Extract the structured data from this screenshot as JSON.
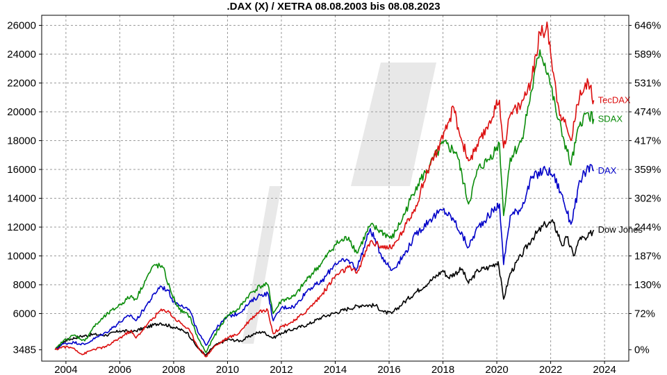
{
  "chart_data": {
    "type": "line",
    "title": ".DAX (X) / XETRA 08.08.2003 bis 08.08.2023",
    "xlabel": "",
    "ylabel": "",
    "xlim": [
      2003.1,
      2024.9
    ],
    "ylim": [
      2700,
      26700
    ],
    "grid": true,
    "x_ticks": [
      "2004",
      "2006",
      "2008",
      "2010",
      "2012",
      "2014",
      "2016",
      "2018",
      "2020",
      "2022",
      "2024"
    ],
    "y_ticks_left": [
      "3485",
      "6000",
      "8000",
      "10000",
      "12000",
      "14000",
      "16000",
      "18000",
      "20000",
      "22000",
      "24000",
      "26000"
    ],
    "y_ticks_right": [
      "0%",
      "72%",
      "130%",
      "187%",
      "244%",
      "302%",
      "359%",
      "417%",
      "474%",
      "531%",
      "589%",
      "646%"
    ],
    "series": [
      {
        "name": "Dow Jones",
        "color": "#000000",
        "points": [
          [
            2003.6,
            3485
          ],
          [
            2004.0,
            4150
          ],
          [
            2004.5,
            4400
          ],
          [
            2005.0,
            4550
          ],
          [
            2005.5,
            4500
          ],
          [
            2006.0,
            4800
          ],
          [
            2006.5,
            4750
          ],
          [
            2007.0,
            5050
          ],
          [
            2007.5,
            5350
          ],
          [
            2008.0,
            5050
          ],
          [
            2008.5,
            4700
          ],
          [
            2008.9,
            3600
          ],
          [
            2009.2,
            3100
          ],
          [
            2009.5,
            3750
          ],
          [
            2010.0,
            4200
          ],
          [
            2010.5,
            4100
          ],
          [
            2011.0,
            4600
          ],
          [
            2011.3,
            4750
          ],
          [
            2011.7,
            4300
          ],
          [
            2012.0,
            4650
          ],
          [
            2012.5,
            4950
          ],
          [
            2013.0,
            5250
          ],
          [
            2013.5,
            5750
          ],
          [
            2014.0,
            6050
          ],
          [
            2014.5,
            6350
          ],
          [
            2015.0,
            6600
          ],
          [
            2015.5,
            6550
          ],
          [
            2015.8,
            6100
          ],
          [
            2016.1,
            6000
          ],
          [
            2016.5,
            6700
          ],
          [
            2017.0,
            7500
          ],
          [
            2017.5,
            8200
          ],
          [
            2018.0,
            9000
          ],
          [
            2018.2,
            8500
          ],
          [
            2018.7,
            9100
          ],
          [
            2018.95,
            8100
          ],
          [
            2019.3,
            9000
          ],
          [
            2019.7,
            9200
          ],
          [
            2020.05,
            9600
          ],
          [
            2020.25,
            7000
          ],
          [
            2020.5,
            8800
          ],
          [
            2020.9,
            10000
          ],
          [
            2021.3,
            11200
          ],
          [
            2021.8,
            12200
          ],
          [
            2022.1,
            12300
          ],
          [
            2022.45,
            10700
          ],
          [
            2022.6,
            11300
          ],
          [
            2022.85,
            10000
          ],
          [
            2023.1,
            11300
          ],
          [
            2023.3,
            11100
          ],
          [
            2023.6,
            11800
          ]
        ]
      },
      {
        "name": "DAX",
        "color": "#0000c8",
        "points": [
          [
            2003.6,
            3485
          ],
          [
            2003.9,
            3900
          ],
          [
            2004.3,
            4000
          ],
          [
            2004.7,
            3850
          ],
          [
            2005.0,
            4200
          ],
          [
            2005.5,
            4700
          ],
          [
            2006.0,
            5400
          ],
          [
            2006.4,
            5900
          ],
          [
            2006.6,
            5500
          ],
          [
            2007.0,
            6600
          ],
          [
            2007.5,
            7900
          ],
          [
            2007.8,
            7600
          ],
          [
            2008.0,
            6800
          ],
          [
            2008.3,
            6600
          ],
          [
            2008.6,
            6200
          ],
          [
            2008.9,
            4700
          ],
          [
            2009.2,
            3800
          ],
          [
            2009.5,
            4800
          ],
          [
            2010.0,
            5800
          ],
          [
            2010.4,
            6000
          ],
          [
            2010.8,
            6700
          ],
          [
            2011.2,
            7300
          ],
          [
            2011.5,
            7400
          ],
          [
            2011.7,
            5500
          ],
          [
            2012.0,
            6400
          ],
          [
            2012.5,
            6500
          ],
          [
            2013.0,
            7700
          ],
          [
            2013.5,
            8200
          ],
          [
            2014.0,
            9500
          ],
          [
            2014.5,
            9700
          ],
          [
            2014.8,
            9100
          ],
          [
            2015.3,
            11900
          ],
          [
            2015.7,
            10100
          ],
          [
            2016.1,
            9000
          ],
          [
            2016.5,
            9900
          ],
          [
            2017.0,
            11500
          ],
          [
            2017.5,
            12500
          ],
          [
            2018.0,
            13200
          ],
          [
            2018.4,
            12500
          ],
          [
            2018.95,
            10600
          ],
          [
            2019.3,
            12000
          ],
          [
            2019.7,
            12800
          ],
          [
            2020.1,
            13600
          ],
          [
            2020.25,
            9400
          ],
          [
            2020.5,
            12800
          ],
          [
            2020.9,
            13300
          ],
          [
            2021.3,
            15400
          ],
          [
            2021.8,
            16000
          ],
          [
            2022.1,
            15600
          ],
          [
            2022.4,
            14300
          ],
          [
            2022.75,
            12200
          ],
          [
            2023.1,
            15200
          ],
          [
            2023.4,
            16200
          ],
          [
            2023.6,
            15900
          ]
        ]
      },
      {
        "name": "SDAX",
        "color": "#0a8c0a",
        "points": [
          [
            2003.6,
            3485
          ],
          [
            2003.9,
            4100
          ],
          [
            2004.3,
            4500
          ],
          [
            2004.7,
            4100
          ],
          [
            2005.0,
            5000
          ],
          [
            2005.5,
            5900
          ],
          [
            2006.0,
            6600
          ],
          [
            2006.4,
            7200
          ],
          [
            2006.6,
            7000
          ],
          [
            2007.0,
            8500
          ],
          [
            2007.3,
            9400
          ],
          [
            2007.6,
            9200
          ],
          [
            2007.9,
            7500
          ],
          [
            2008.2,
            6300
          ],
          [
            2008.6,
            5800
          ],
          [
            2008.9,
            4300
          ],
          [
            2009.2,
            3300
          ],
          [
            2009.5,
            4400
          ],
          [
            2010.0,
            5900
          ],
          [
            2010.4,
            6300
          ],
          [
            2010.8,
            7300
          ],
          [
            2011.2,
            7900
          ],
          [
            2011.5,
            8000
          ],
          [
            2011.7,
            6000
          ],
          [
            2012.0,
            6900
          ],
          [
            2012.5,
            7200
          ],
          [
            2013.0,
            8500
          ],
          [
            2013.5,
            9500
          ],
          [
            2014.0,
            10800
          ],
          [
            2014.5,
            11300
          ],
          [
            2014.8,
            10200
          ],
          [
            2015.3,
            12100
          ],
          [
            2015.7,
            11700
          ],
          [
            2016.1,
            11200
          ],
          [
            2016.5,
            12600
          ],
          [
            2017.0,
            14800
          ],
          [
            2017.5,
            16200
          ],
          [
            2018.0,
            17800
          ],
          [
            2018.5,
            17200
          ],
          [
            2018.95,
            13600
          ],
          [
            2019.3,
            16000
          ],
          [
            2019.7,
            16700
          ],
          [
            2020.1,
            17800
          ],
          [
            2020.25,
            12800
          ],
          [
            2020.5,
            16800
          ],
          [
            2020.9,
            17900
          ],
          [
            2021.3,
            21500
          ],
          [
            2021.6,
            24300
          ],
          [
            2021.9,
            22700
          ],
          [
            2022.2,
            20000
          ],
          [
            2022.5,
            18000
          ],
          [
            2022.75,
            16300
          ],
          [
            2023.1,
            19300
          ],
          [
            2023.4,
            19900
          ],
          [
            2023.6,
            19500
          ]
        ]
      },
      {
        "name": "TecDAX",
        "color": "#dc0f0f",
        "points": [
          [
            2003.6,
            3485
          ],
          [
            2003.9,
            3700
          ],
          [
            2004.3,
            3600
          ],
          [
            2004.6,
            3150
          ],
          [
            2005.0,
            3500
          ],
          [
            2005.5,
            3700
          ],
          [
            2006.0,
            4300
          ],
          [
            2006.4,
            4800
          ],
          [
            2006.6,
            4300
          ],
          [
            2007.0,
            5200
          ],
          [
            2007.5,
            6200
          ],
          [
            2007.8,
            6200
          ],
          [
            2008.0,
            5700
          ],
          [
            2008.3,
            5300
          ],
          [
            2008.6,
            4800
          ],
          [
            2008.9,
            3700
          ],
          [
            2009.2,
            3000
          ],
          [
            2009.5,
            3700
          ],
          [
            2010.0,
            4300
          ],
          [
            2010.4,
            4600
          ],
          [
            2010.8,
            5500
          ],
          [
            2011.2,
            6200
          ],
          [
            2011.5,
            6200
          ],
          [
            2011.7,
            4600
          ],
          [
            2012.0,
            5100
          ],
          [
            2012.5,
            5500
          ],
          [
            2013.0,
            6300
          ],
          [
            2013.5,
            7300
          ],
          [
            2014.0,
            8600
          ],
          [
            2014.5,
            9200
          ],
          [
            2014.8,
            8800
          ],
          [
            2015.3,
            11000
          ],
          [
            2015.7,
            10700
          ],
          [
            2016.1,
            10500
          ],
          [
            2016.5,
            11700
          ],
          [
            2017.0,
            13500
          ],
          [
            2017.5,
            16300
          ],
          [
            2018.0,
            18100
          ],
          [
            2018.4,
            20300
          ],
          [
            2018.6,
            18600
          ],
          [
            2018.95,
            16600
          ],
          [
            2019.3,
            17600
          ],
          [
            2019.7,
            19200
          ],
          [
            2020.1,
            20800
          ],
          [
            2020.25,
            17500
          ],
          [
            2020.5,
            19800
          ],
          [
            2020.9,
            20500
          ],
          [
            2021.3,
            22300
          ],
          [
            2021.6,
            25500
          ],
          [
            2021.9,
            25700
          ],
          [
            2022.1,
            22700
          ],
          [
            2022.3,
            20300
          ],
          [
            2022.5,
            19300
          ],
          [
            2022.75,
            18000
          ],
          [
            2023.1,
            21500
          ],
          [
            2023.4,
            22000
          ],
          [
            2023.6,
            20800
          ]
        ]
      }
    ]
  }
}
